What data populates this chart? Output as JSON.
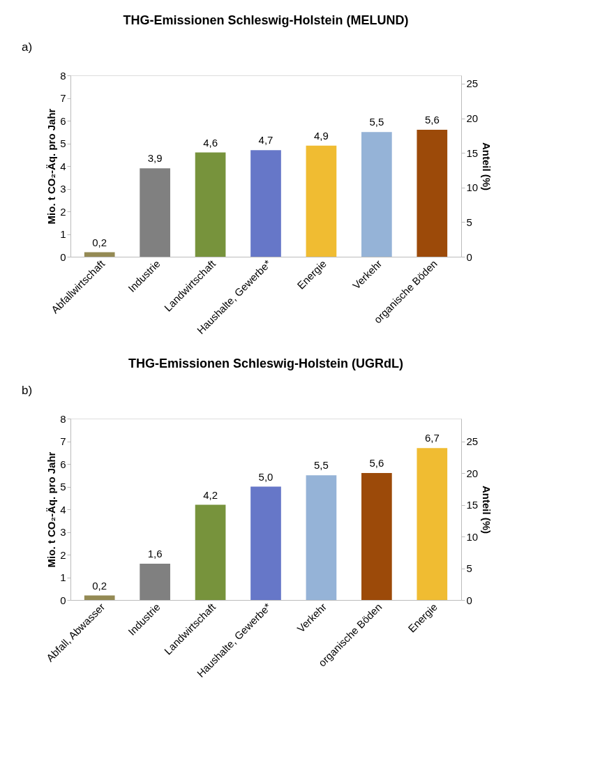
{
  "chart_data": [
    {
      "type": "bar",
      "title": "THG-Emissionen Schleswig-Holstein (MELUND)",
      "ylabel": "Mio. t CO₂-Äq. pro Jahr",
      "y2label": "Anteil (%)",
      "annotations": [
        "a)"
      ],
      "categories": [
        "Abfallwirtschaft",
        "Industrie",
        "Landwirtschaft",
        "Haushalte, Gewerbe*",
        "Energie",
        "Verkehr",
        "organische Böden"
      ],
      "values": [
        0.2,
        3.9,
        4.6,
        4.7,
        4.9,
        5.5,
        5.6
      ],
      "value_labels": [
        "0,2",
        "3,9",
        "4,6",
        "4,7",
        "4,9",
        "5,5",
        "5,6"
      ],
      "colors": [
        "#948a54",
        "#808080",
        "#77933c",
        "#6677c8",
        "#f0bc32",
        "#95b3d7",
        "#9c4a09"
      ],
      "ylim": [
        0,
        8
      ],
      "yticks": [
        0,
        1,
        2,
        3,
        4,
        5,
        6,
        7,
        8
      ],
      "y2lim": [
        0,
        26.2
      ],
      "y2ticks": [
        0,
        5,
        10,
        15,
        20,
        25
      ],
      "grid": false,
      "legend": false
    },
    {
      "type": "bar",
      "title": "THG-Emissionen Schleswig-Holstein (UGRdL)",
      "ylabel": "Mio. t CO₂-Äq. pro Jahr",
      "y2label": "Anteil (%)",
      "annotations": [
        "b)"
      ],
      "categories": [
        "Abfall, Abwasser",
        "Industrie",
        "Landwirtschaft",
        "Haushalte, Gewerbe*",
        "Verkehr",
        "organische Böden",
        "Energie"
      ],
      "values": [
        0.2,
        1.6,
        4.2,
        5.0,
        5.5,
        5.6,
        6.7
      ],
      "value_labels": [
        "0,2",
        "1,6",
        "4,2",
        "5,0",
        "5,5",
        "5,6",
        "6,7"
      ],
      "colors": [
        "#948a54",
        "#808080",
        "#77933c",
        "#6677c8",
        "#95b3d7",
        "#9c4a09",
        "#f0bc32"
      ],
      "ylim": [
        0,
        8
      ],
      "yticks": [
        0,
        1,
        2,
        3,
        4,
        5,
        6,
        7,
        8
      ],
      "y2lim": [
        0,
        28.6
      ],
      "y2ticks": [
        0,
        5,
        10,
        15,
        20,
        25
      ],
      "grid": false,
      "legend": false
    }
  ]
}
